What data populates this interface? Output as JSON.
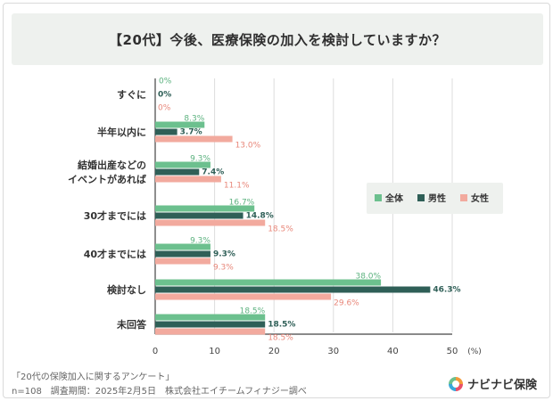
{
  "title": "【20代】今後、医療保険の加入を検討していますか？",
  "chart_data": {
    "type": "bar",
    "orientation": "horizontal",
    "categories": [
      "すぐに",
      "半年以内に",
      "結婚出産などの\nイベントがあれば",
      "30才までには",
      "40才までには",
      "検討なし",
      "未回答"
    ],
    "series": [
      {
        "name": "全体",
        "color": "#6cc08e",
        "labelColor": "#5cb27f",
        "values": [
          0,
          8.3,
          9.3,
          16.7,
          9.3,
          38.0,
          18.5
        ]
      },
      {
        "name": "男性",
        "color": "#2f5f57",
        "labelColor": "#2f5f57",
        "values": [
          0,
          3.7,
          7.4,
          14.8,
          9.3,
          46.3,
          18.5
        ]
      },
      {
        "name": "女性",
        "color": "#f2aa9e",
        "labelColor": "#e8877a",
        "values": [
          0,
          13.0,
          11.1,
          18.5,
          9.3,
          29.6,
          18.5
        ]
      }
    ],
    "value_labels": [
      [
        "0%",
        "8.3%",
        "9.3%",
        "16.7%",
        "9.3%",
        "38.0%",
        "18.5%"
      ],
      [
        "0%",
        "3.7%",
        "7.4%",
        "14.8%",
        "9.3%",
        "46.3%",
        "18.5%"
      ],
      [
        "0%",
        "13.0%",
        "11.1%",
        "18.5%",
        "9.3%",
        "29.6%",
        "18.5%"
      ]
    ],
    "xlim": [
      0,
      50
    ],
    "xticks": [
      "0",
      "10",
      "20",
      "30",
      "40",
      "50"
    ],
    "xunit": "(%)",
    "legend_position": "right",
    "grid": true
  },
  "footer": {
    "survey_name": "「20代の保険加入に関するアンケート」",
    "details": "n=108　調査期間：2025年2月5日　株式会社エイチームフィナジー調べ"
  },
  "brand": {
    "name": "ナビナビ保険"
  }
}
